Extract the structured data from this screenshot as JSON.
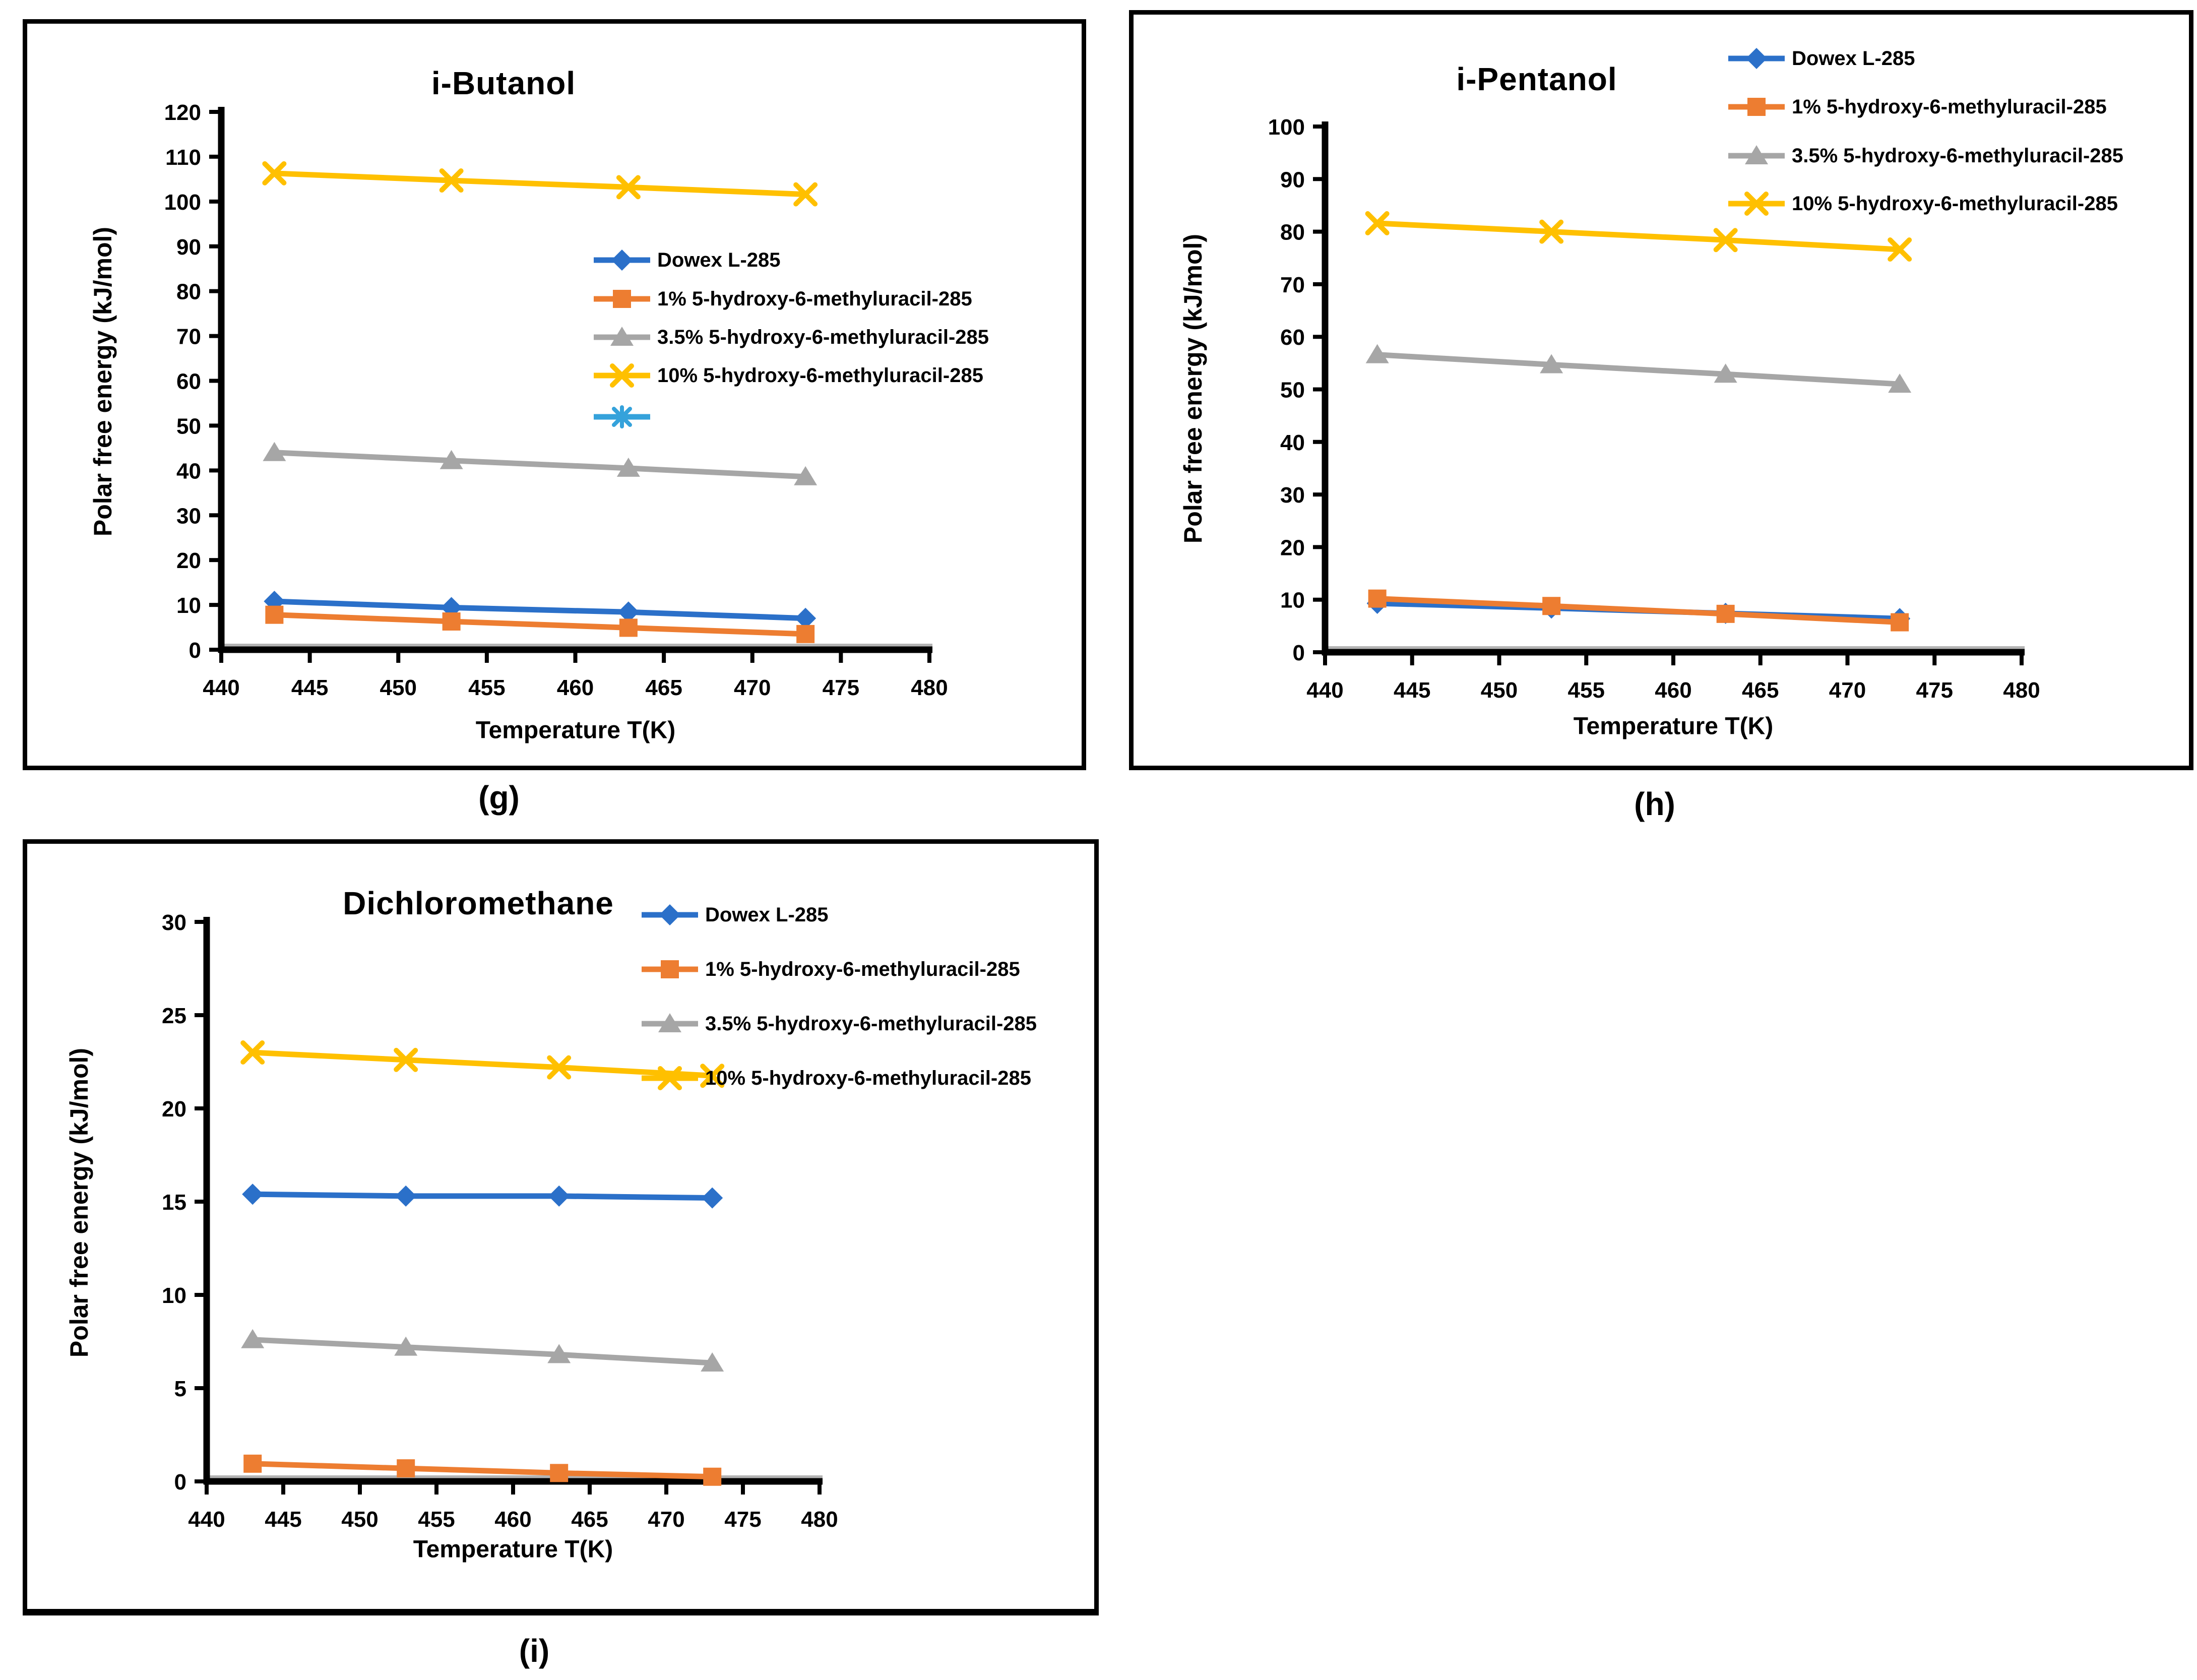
{
  "figure": {
    "captions": [
      {
        "id": "g",
        "label": "(g)"
      },
      {
        "id": "h",
        "label": "(h)"
      },
      {
        "id": "i",
        "label": "(i)"
      }
    ]
  },
  "chart_data": [
    {
      "type": "line",
      "panel": "g",
      "title": "i-Butanol",
      "xlabel": "Temperature T(K)",
      "ylabel": "Polar free energy (kJ/mol)",
      "x": [
        443,
        453,
        463,
        473
      ],
      "xlim": [
        440,
        480
      ],
      "xtick_step": 5,
      "ylim": [
        0,
        120
      ],
      "ytick_step": 10,
      "grid": false,
      "legend_position": "inside-right",
      "series": [
        {
          "name": "Dowex L-285",
          "color": "#2B70C9",
          "marker": "diamond",
          "values": [
            10.8,
            9.4,
            8.4,
            7.0
          ]
        },
        {
          "name": "1% 5-hydroxy-6-methyluracil-285",
          "color": "#ED7D31",
          "marker": "square",
          "values": [
            7.8,
            6.3,
            4.9,
            3.5
          ]
        },
        {
          "name": "3.5% 5-hydroxy-6-methyluracil-285",
          "color": "#A6A6A6",
          "marker": "triangle",
          "values": [
            44.0,
            42.2,
            40.5,
            38.6
          ]
        },
        {
          "name": "10% 5-hydroxy-6-methyluracil-285",
          "color": "#FFC000",
          "marker": "x",
          "values": [
            106.3,
            104.7,
            103.2,
            101.6
          ]
        }
      ],
      "extra_legend_entries": [
        {
          "name": "",
          "color": "#35A2DB",
          "marker": "asterisk"
        }
      ]
    },
    {
      "type": "line",
      "panel": "h",
      "title": "i-Pentanol",
      "xlabel": "Temperature T(K)",
      "ylabel": "Polar free energy (kJ/mol)",
      "x": [
        443,
        453,
        463,
        473
      ],
      "xlim": [
        440,
        480
      ],
      "xtick_step": 5,
      "ylim": [
        0,
        100
      ],
      "ytick_step": 10,
      "grid": false,
      "legend_position": "outside-top-right",
      "series": [
        {
          "name": "Dowex L-285",
          "color": "#2B70C9",
          "marker": "diamond",
          "values": [
            9.3,
            8.4,
            7.4,
            6.4
          ]
        },
        {
          "name": "1% 5-hydroxy-6-methyluracil-285",
          "color": "#ED7D31",
          "marker": "square",
          "values": [
            10.2,
            8.8,
            7.3,
            5.7
          ]
        },
        {
          "name": "3.5% 5-hydroxy-6-methyluracil-285",
          "color": "#A6A6A6",
          "marker": "triangle",
          "values": [
            56.6,
            54.7,
            52.9,
            51.0
          ]
        },
        {
          "name": "10% 5-hydroxy-6-methyluracil-285",
          "color": "#FFC000",
          "marker": "x",
          "values": [
            81.6,
            80.0,
            78.4,
            76.6
          ]
        }
      ],
      "extra_legend_entries": []
    },
    {
      "type": "line",
      "panel": "i",
      "title": "Dichloromethane",
      "xlabel": "Temperature T(K)",
      "ylabel": "Polar free energy (kJ/mol)",
      "x": [
        443,
        453,
        463,
        473
      ],
      "xlim": [
        440,
        480
      ],
      "xtick_step": 5,
      "ylim": [
        0,
        30
      ],
      "ytick_step": 5,
      "grid": false,
      "legend_position": "inside-top-right",
      "series": [
        {
          "name": "Dowex L-285",
          "color": "#2B70C9",
          "marker": "diamond",
          "values": [
            15.4,
            15.3,
            15.3,
            15.2
          ]
        },
        {
          "name": "1% 5-hydroxy-6-methyluracil-285",
          "color": "#ED7D31",
          "marker": "square",
          "values": [
            0.95,
            0.7,
            0.45,
            0.25
          ]
        },
        {
          "name": "3.5% 5-hydroxy-6-methyluracil-285",
          "color": "#A6A6A6",
          "marker": "triangle",
          "values": [
            7.6,
            7.2,
            6.8,
            6.35
          ]
        },
        {
          "name": "10% 5-hydroxy-6-methyluracil-285",
          "color": "#FFC000",
          "marker": "x",
          "values": [
            23.0,
            22.6,
            22.2,
            21.75
          ]
        }
      ],
      "extra_legend_entries": []
    }
  ]
}
